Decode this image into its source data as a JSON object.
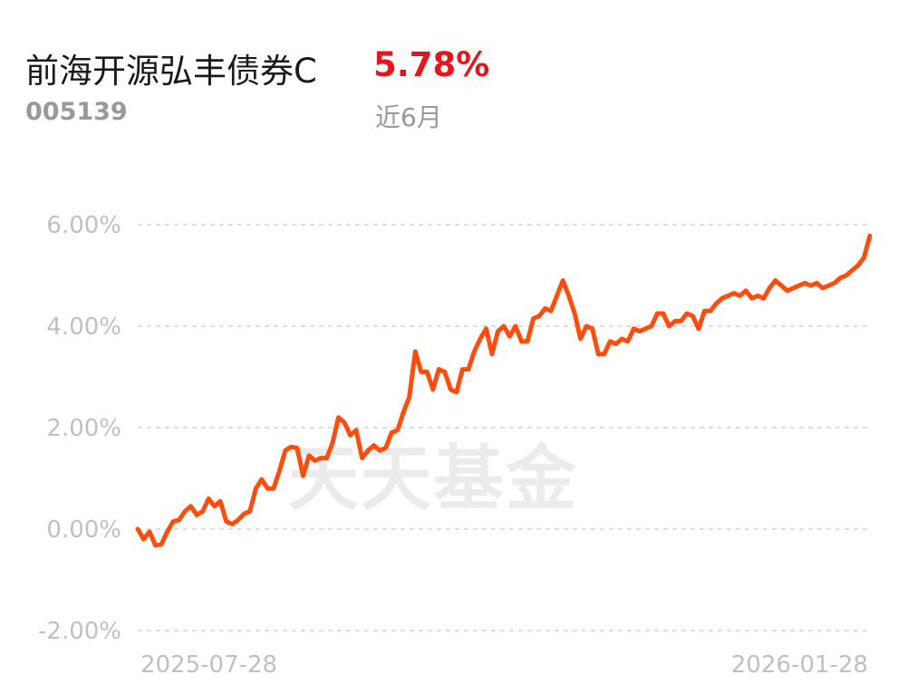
{
  "header": {
    "fund_name": "前海开源弘丰债券C",
    "fund_code": "005139",
    "return_value": "5.78%",
    "period_label": "近6月"
  },
  "watermark": "天天基金",
  "colors": {
    "series": "#ff4d0d",
    "return": "#e8141c"
  },
  "chart_data": {
    "type": "line",
    "x_tick_labels": [
      "2025-07-28",
      "2026-01-28"
    ],
    "y_tick_labels": [
      "6.00%",
      "4.00%",
      "2.00%",
      "0.00%",
      "-2.00%"
    ],
    "y_ticks": [
      6,
      4,
      2,
      0,
      -2
    ],
    "ylim": [
      -2,
      6
    ],
    "grid": "horizontal-dashed",
    "series": [
      {
        "values": [
          0.0,
          -0.2,
          -0.05,
          -0.32,
          -0.3,
          -0.05,
          0.15,
          0.18,
          0.35,
          0.45,
          0.28,
          0.35,
          0.6,
          0.45,
          0.55,
          0.15,
          0.1,
          0.18,
          0.3,
          0.35,
          0.8,
          0.98,
          0.8,
          0.8,
          1.15,
          1.55,
          1.62,
          1.6,
          1.05,
          1.45,
          1.35,
          1.4,
          1.4,
          1.7,
          2.2,
          2.1,
          1.85,
          1.95,
          1.4,
          1.55,
          1.65,
          1.55,
          1.6,
          1.9,
          1.95,
          2.3,
          2.6,
          3.5,
          3.1,
          3.1,
          2.75,
          3.15,
          3.1,
          2.75,
          2.7,
          3.15,
          3.15,
          3.5,
          3.75,
          3.95,
          3.45,
          3.9,
          4.0,
          3.8,
          4.0,
          3.7,
          3.7,
          4.15,
          4.2,
          4.35,
          4.3,
          4.6,
          4.9,
          4.6,
          4.25,
          3.75,
          4.0,
          3.95,
          3.45,
          3.45,
          3.7,
          3.65,
          3.75,
          3.7,
          3.95,
          3.9,
          3.95,
          4.0,
          4.25,
          4.25,
          4.0,
          4.1,
          4.1,
          4.25,
          4.2,
          3.95,
          4.3,
          4.3,
          4.45,
          4.55,
          4.6,
          4.65,
          4.6,
          4.7,
          4.55,
          4.6,
          4.55,
          4.75,
          4.9,
          4.8,
          4.7,
          4.75,
          4.8,
          4.85,
          4.8,
          4.85,
          4.75,
          4.8,
          4.85,
          4.95,
          5.0,
          5.1,
          5.2,
          5.35,
          5.78
        ]
      }
    ]
  }
}
